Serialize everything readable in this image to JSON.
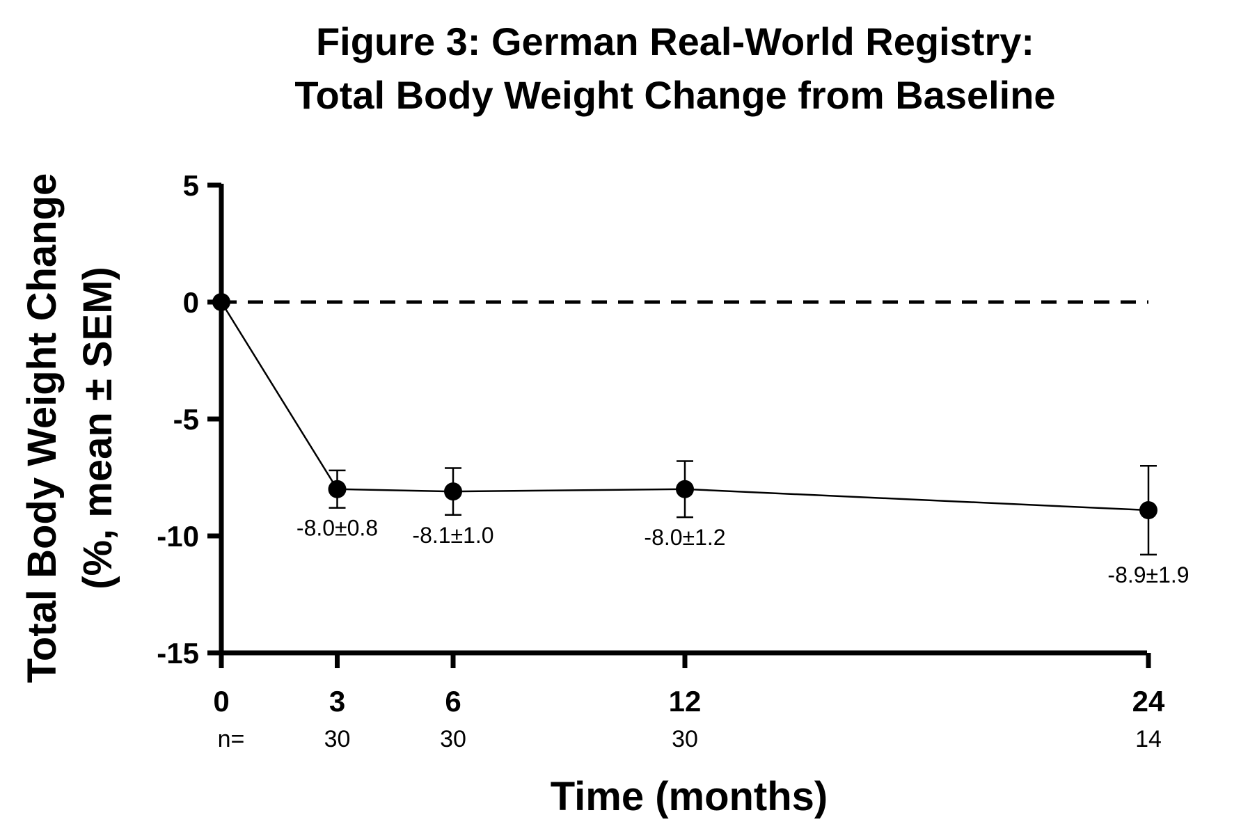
{
  "chart_data": {
    "type": "line",
    "title": [
      "Figure 3: German Real-World Registry:",
      "Total Body Weight Change from Baseline"
    ],
    "xlabel": "Time (months)",
    "ylabel": [
      "Total Body Weight Change",
      "(%, mean ± SEM)"
    ],
    "x_ticks": [
      "0",
      "3",
      "6",
      "12",
      "24"
    ],
    "y_ticks": [
      "5",
      "0",
      "-5",
      "-10",
      "-15"
    ],
    "ylim": [
      -15,
      5
    ],
    "n_prefix": "n=",
    "n_values": [
      "30",
      "30",
      "30",
      "14"
    ],
    "reference_line": {
      "y": 0,
      "style": "dashed"
    },
    "series": [
      {
        "x": [
          0,
          3,
          6,
          12,
          24
        ],
        "y": [
          0,
          -8.0,
          -8.1,
          -8.0,
          -8.9
        ],
        "sem": [
          0,
          0.8,
          1.0,
          1.2,
          1.9
        ],
        "data_labels": [
          "",
          "-8.0±0.8",
          "-8.1±1.0",
          "-8.0±1.2",
          "-8.9±1.9"
        ]
      }
    ],
    "grid": false,
    "colors": {
      "line": "#000000",
      "marker": "#000000"
    }
  }
}
